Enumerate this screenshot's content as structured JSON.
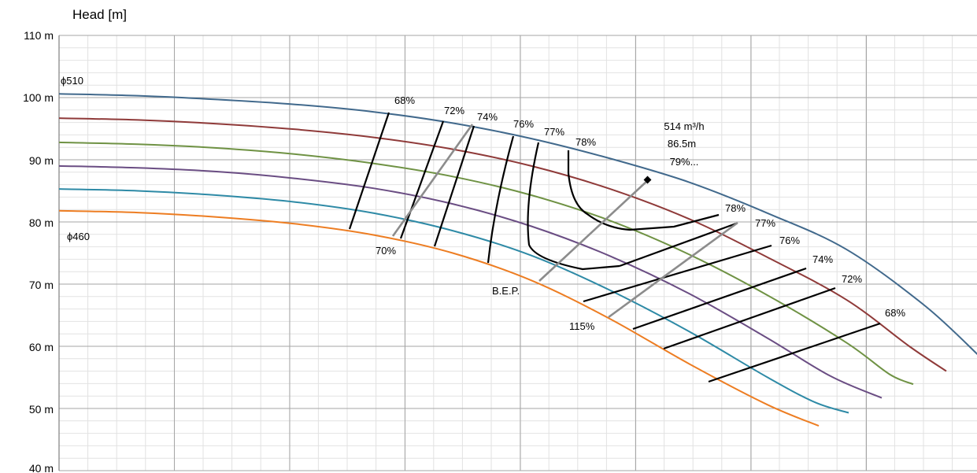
{
  "chart_data": {
    "type": "line",
    "ylabel": "Head [m]",
    "ylim": [
      40,
      110
    ],
    "y_ticks": [
      "110 m",
      "100 m",
      "90 m",
      "80 m",
      "70 m",
      "60 m",
      "50 m",
      "40 m"
    ],
    "grid": true,
    "x_axis_tick_labels_shown": false,
    "impeller_labels": [
      "ϕ510",
      "ϕ460"
    ],
    "series": [
      {
        "color": "#41698c",
        "points": [
          [
            0,
            100.6
          ],
          [
            100,
            100.3
          ],
          [
            200,
            99.7
          ],
          [
            300,
            98.9
          ],
          [
            400,
            97.7
          ],
          [
            500,
            95.9
          ],
          [
            600,
            93.4
          ],
          [
            700,
            90.2
          ],
          [
            800,
            86.4
          ],
          [
            900,
            81.4
          ],
          [
            1000,
            75.6
          ],
          [
            1100,
            66.5
          ],
          [
            1170,
            58.3
          ]
        ]
      },
      {
        "color": "#8f3a39",
        "points": [
          [
            0,
            96.7
          ],
          [
            100,
            96.4
          ],
          [
            200,
            95.8
          ],
          [
            300,
            94.9
          ],
          [
            400,
            93.6
          ],
          [
            500,
            91.7
          ],
          [
            600,
            89.0
          ],
          [
            700,
            85.3
          ],
          [
            800,
            80.5
          ],
          [
            900,
            74.3
          ],
          [
            1000,
            67.5
          ],
          [
            1080,
            60.0
          ],
          [
            1127,
            56.0
          ]
        ]
      },
      {
        "color": "#6f9244",
        "points": [
          [
            0,
            92.8
          ],
          [
            100,
            92.5
          ],
          [
            200,
            91.9
          ],
          [
            300,
            90.9
          ],
          [
            400,
            89.4
          ],
          [
            500,
            87.3
          ],
          [
            600,
            84.3
          ],
          [
            700,
            80.2
          ],
          [
            800,
            74.8
          ],
          [
            900,
            68.2
          ],
          [
            1000,
            60.6
          ],
          [
            1055,
            55.5
          ],
          [
            1085,
            53.9
          ]
        ]
      },
      {
        "color": "#6a4d83",
        "points": [
          [
            0,
            89.0
          ],
          [
            100,
            88.7
          ],
          [
            200,
            88.1
          ],
          [
            300,
            87.0
          ],
          [
            400,
            85.4
          ],
          [
            500,
            82.9
          ],
          [
            600,
            79.3
          ],
          [
            700,
            74.5
          ],
          [
            800,
            68.5
          ],
          [
            900,
            61.3
          ],
          [
            980,
            55.2
          ],
          [
            1045,
            51.7
          ]
        ]
      },
      {
        "color": "#2e8aa6",
        "points": [
          [
            0,
            85.3
          ],
          [
            100,
            85.0
          ],
          [
            200,
            84.3
          ],
          [
            300,
            83.2
          ],
          [
            400,
            81.4
          ],
          [
            500,
            78.6
          ],
          [
            600,
            74.6
          ],
          [
            700,
            69.0
          ],
          [
            800,
            62.4
          ],
          [
            900,
            55.0
          ],
          [
            960,
            51.0
          ],
          [
            1003,
            49.3
          ]
        ]
      },
      {
        "color": "#ed7d22",
        "points": [
          [
            0,
            81.8
          ],
          [
            100,
            81.5
          ],
          [
            200,
            80.8
          ],
          [
            300,
            79.7
          ],
          [
            400,
            77.9
          ],
          [
            500,
            75.0
          ],
          [
            600,
            70.6
          ],
          [
            700,
            64.4
          ],
          [
            800,
            57.2
          ],
          [
            900,
            50.6
          ],
          [
            965,
            47.2
          ]
        ]
      }
    ],
    "efficiency_labels": [
      "68%",
      "72%",
      "74%",
      "76%",
      "77%",
      "78%",
      "70%",
      "78%",
      "77%",
      "76%",
      "74%",
      "72%",
      "68%"
    ],
    "annotations": [
      "514 m³/h",
      "86.5m",
      "79%...",
      "B.E.P.",
      "115%"
    ]
  }
}
